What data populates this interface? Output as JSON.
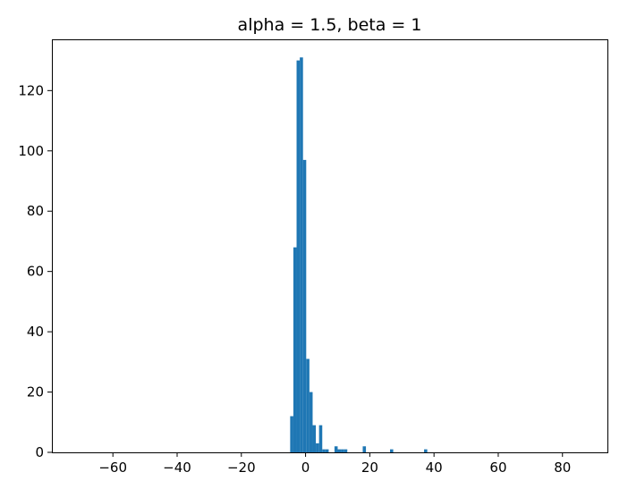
{
  "chart_data": {
    "type": "bar",
    "title": "alpha = 1.5, beta = 1",
    "xlabel": "",
    "ylabel": "",
    "xlim": [
      -79,
      94
    ],
    "ylim": [
      0,
      137
    ],
    "x_ticks": [
      -60,
      -40,
      -20,
      0,
      20,
      40,
      60,
      80
    ],
    "x_tick_labels": [
      "−60",
      "−40",
      "−20",
      "0",
      "20",
      "40",
      "60",
      "80"
    ],
    "y_ticks": [
      0,
      20,
      40,
      60,
      80,
      100,
      120
    ],
    "y_tick_labels": [
      "0",
      "20",
      "40",
      "60",
      "80",
      "100",
      "120"
    ],
    "grid": false,
    "color": "#1f77b4",
    "bins": [
      {
        "x0": -4.8,
        "x1": -3.8,
        "count": 12
      },
      {
        "x0": -3.8,
        "x1": -2.8,
        "count": 68
      },
      {
        "x0": -2.8,
        "x1": -1.8,
        "count": 130
      },
      {
        "x0": -1.8,
        "x1": -0.8,
        "count": 131
      },
      {
        "x0": -0.8,
        "x1": 0.2,
        "count": 97
      },
      {
        "x0": 0.2,
        "x1": 1.2,
        "count": 31
      },
      {
        "x0": 1.2,
        "x1": 2.2,
        "count": 20
      },
      {
        "x0": 2.2,
        "x1": 3.2,
        "count": 9
      },
      {
        "x0": 3.2,
        "x1": 4.2,
        "count": 3
      },
      {
        "x0": 4.2,
        "x1": 5.2,
        "count": 9
      },
      {
        "x0": 5.2,
        "x1": 6.2,
        "count": 1
      },
      {
        "x0": 6.2,
        "x1": 7.2,
        "count": 1
      },
      {
        "x0": 9.0,
        "x1": 10.0,
        "count": 2
      },
      {
        "x0": 10.0,
        "x1": 11.0,
        "count": 1
      },
      {
        "x0": 11.0,
        "x1": 12.0,
        "count": 1
      },
      {
        "x0": 12.0,
        "x1": 13.0,
        "count": 1
      },
      {
        "x0": 17.8,
        "x1": 18.8,
        "count": 2
      },
      {
        "x0": 26.3,
        "x1": 27.3,
        "count": 1
      },
      {
        "x0": 36.9,
        "x1": 37.9,
        "count": 1
      }
    ]
  }
}
